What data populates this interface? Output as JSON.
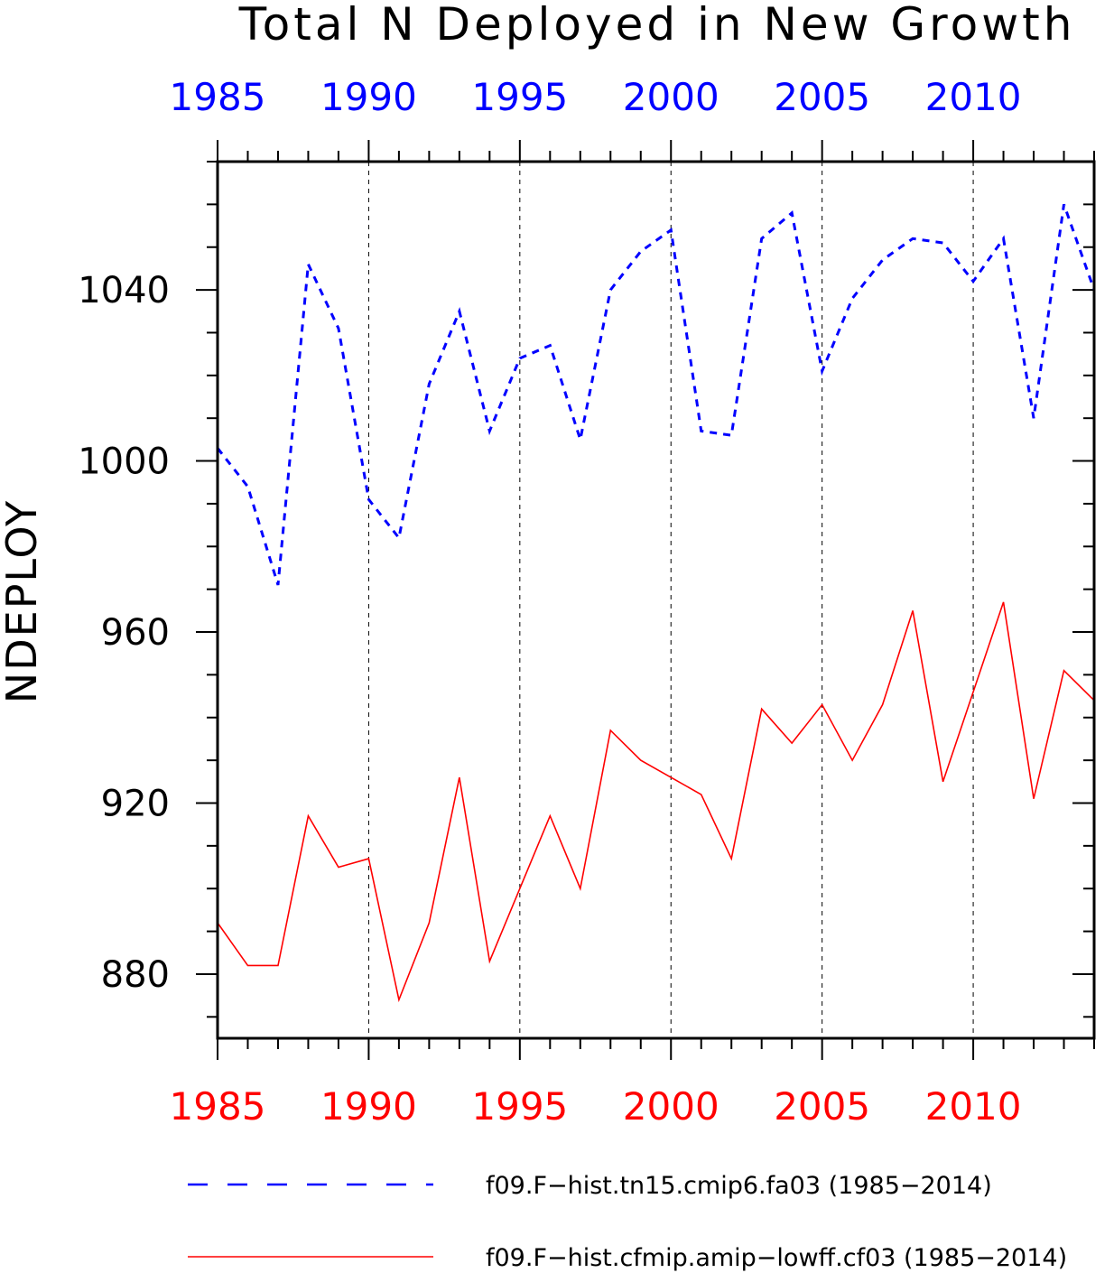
{
  "chart_data": {
    "type": "line",
    "title": "Total N Deployed in New Growth",
    "ylabel": "NDEPLOY",
    "xlabel": "",
    "xlim": [
      1985,
      2014
    ],
    "ylim": [
      865,
      1070
    ],
    "x_ticks": [
      1985,
      1990,
      1995,
      2000,
      2005,
      2010
    ],
    "x_tick_labels": [
      "1985",
      "1990",
      "1995",
      "2000",
      "2005",
      "2010"
    ],
    "y_ticks": [
      880,
      920,
      960,
      1000,
      1040
    ],
    "y_tick_labels": [
      "880",
      "920",
      "960",
      "1000",
      "1040"
    ],
    "grid": "vertical dashed at major x ticks",
    "legend_position": "bottom",
    "x": [
      1985,
      1986,
      1987,
      1988,
      1989,
      1990,
      1991,
      1992,
      1993,
      1994,
      1995,
      1996,
      1997,
      1998,
      1999,
      2000,
      2001,
      2002,
      2003,
      2004,
      2005,
      2006,
      2007,
      2008,
      2009,
      2010,
      2011,
      2012,
      2013,
      2014
    ],
    "series": [
      {
        "name": "f09.F−hist.tn15.cmip6.fa03 (1985−2014)",
        "color": "#0000ff",
        "style": "dashed",
        "values": [
          1003,
          994,
          971,
          1046,
          1031,
          991,
          982,
          1018,
          1035,
          1007,
          1024,
          1027,
          1005,
          1040,
          1049,
          1054,
          1007,
          1006,
          1052,
          1058,
          1021,
          1038,
          1047,
          1052,
          1051,
          1042,
          1052,
          1010,
          1060,
          1040
        ]
      },
      {
        "name": "f09.F−hist.cfmip.amip−lowff.cf03 (1985−2014)",
        "color": "#ff0000",
        "style": "solid",
        "values": [
          892,
          882,
          882,
          917,
          905,
          907,
          874,
          892,
          926,
          883,
          900,
          917,
          900,
          937,
          930,
          926,
          922,
          907,
          942,
          934,
          943,
          930,
          943,
          965,
          925,
          946,
          967,
          921,
          951,
          944
        ]
      }
    ]
  }
}
